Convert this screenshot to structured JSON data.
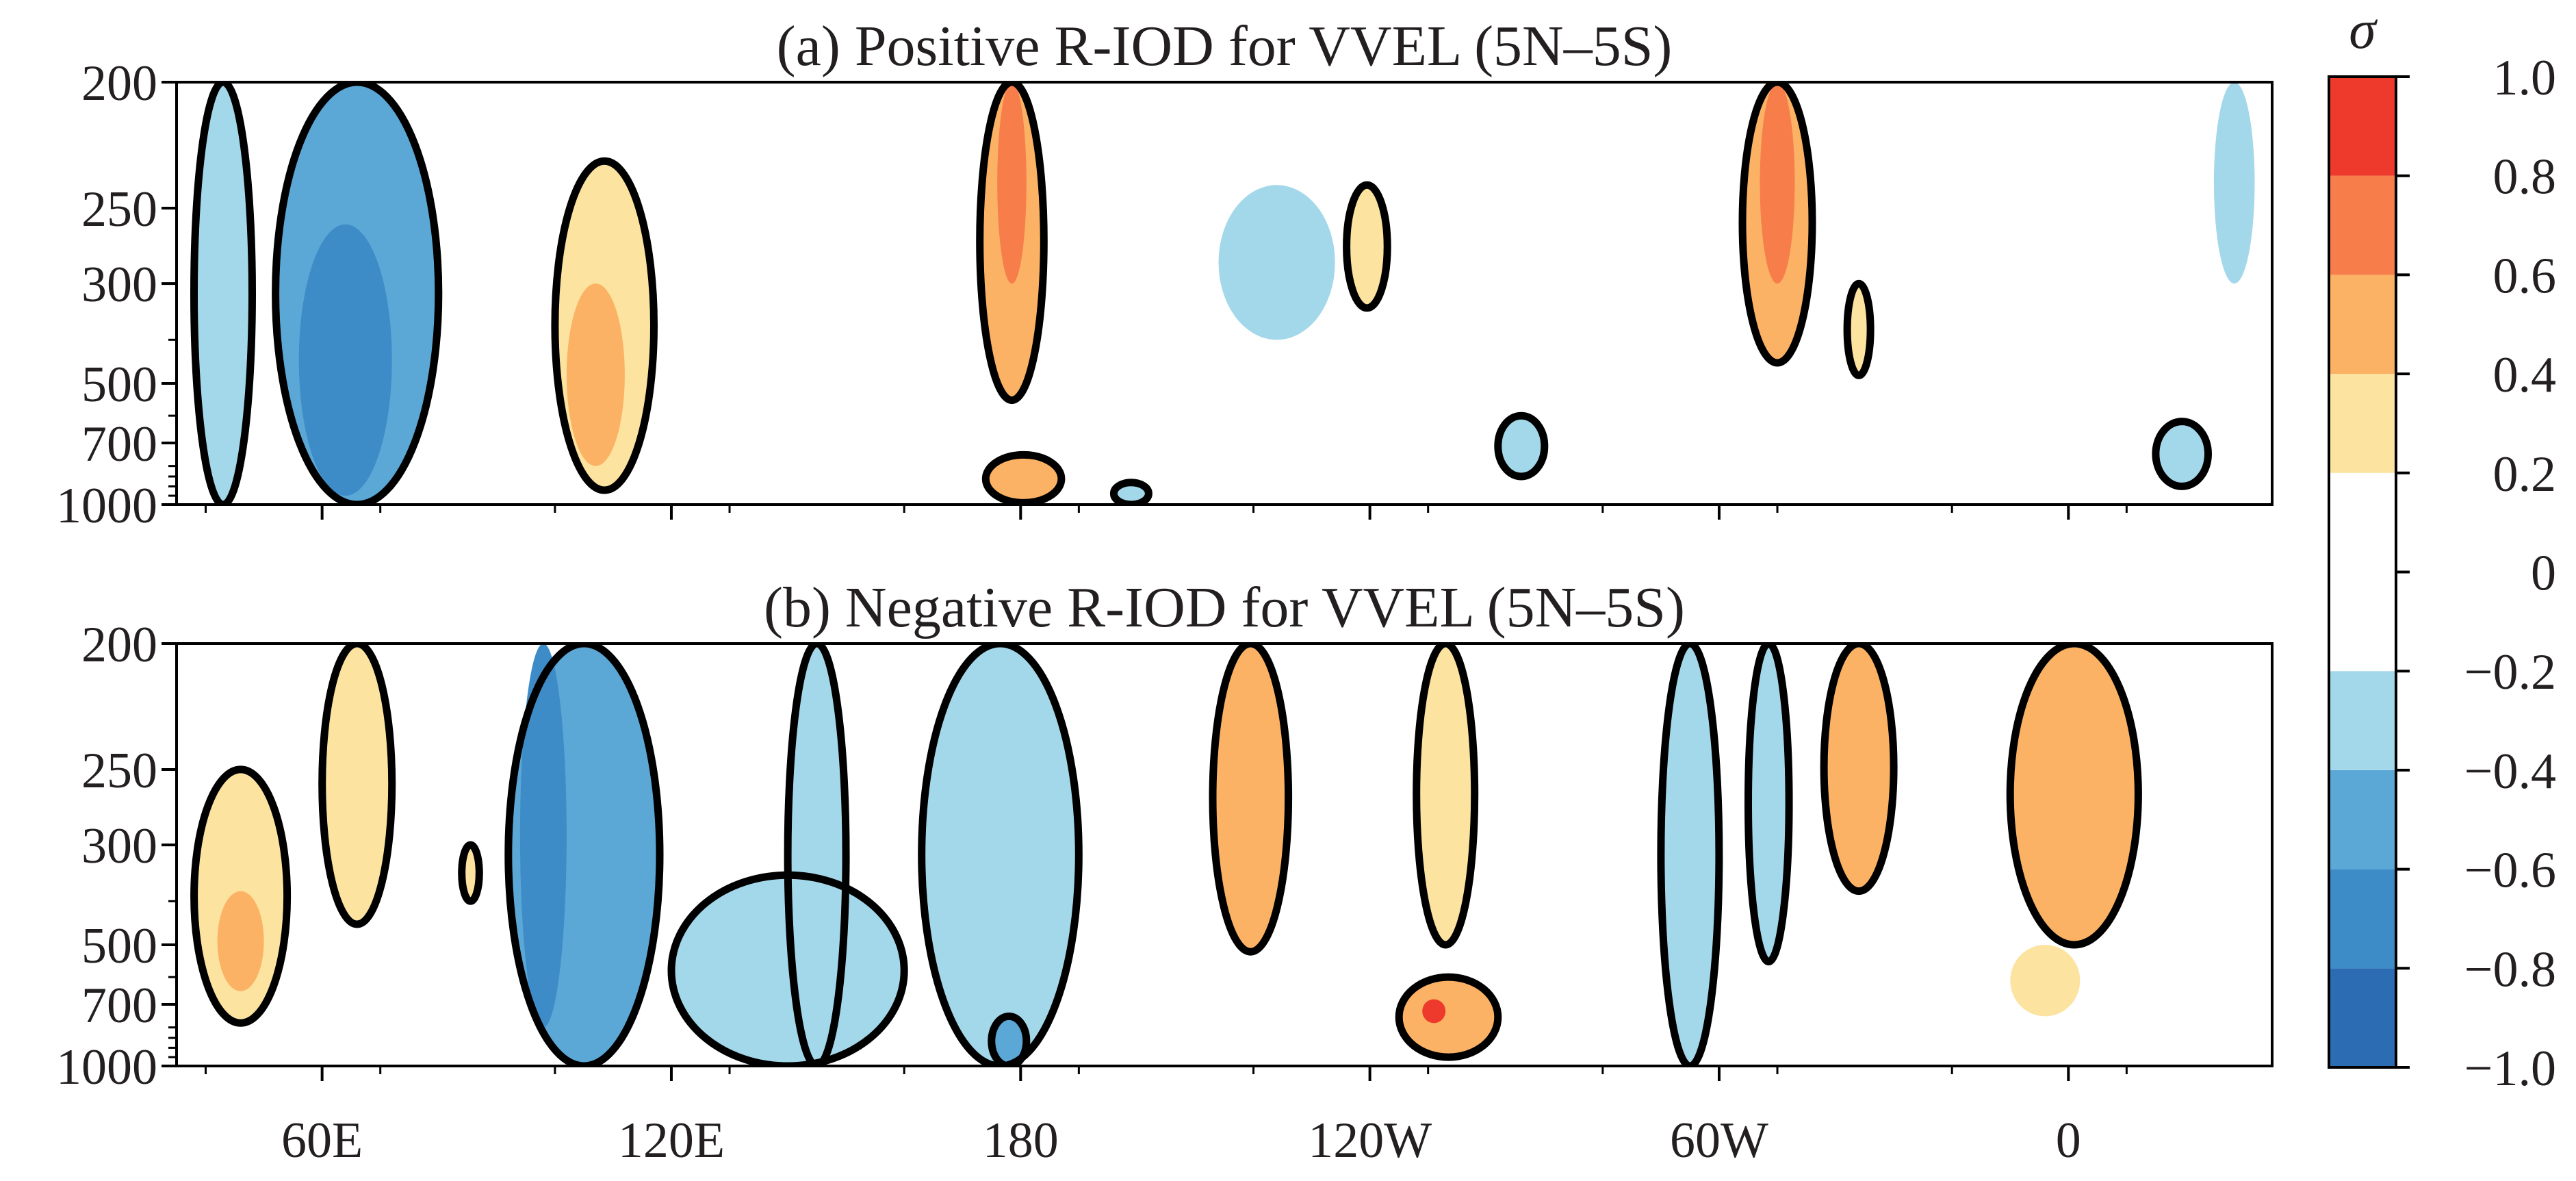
{
  "chart_data": {
    "type": "heatmap",
    "colorbar": {
      "symbol": "σ",
      "levels": [
        -1.0,
        -0.8,
        -0.6,
        -0.4,
        -0.2,
        0.2,
        0.4,
        0.6,
        0.8,
        1.0
      ],
      "tick_values": [
        1.0,
        0.8,
        0.6,
        0.4,
        0.2,
        0,
        -0.2,
        -0.4,
        -0.6,
        -0.8,
        -1.0
      ],
      "tick_labels": [
        "1.0",
        "0.8",
        "0.6",
        "0.4",
        "0.2",
        "0",
        "−0.2",
        "−0.4",
        "−0.6",
        "−0.8",
        "−1.0"
      ],
      "bins": [
        {
          "from": -1.0,
          "to": -0.8,
          "color": "#2b6cb3"
        },
        {
          "from": -0.8,
          "to": -0.6,
          "color": "#3d8cc8"
        },
        {
          "from": -0.6,
          "to": -0.4,
          "color": "#5ba7d6"
        },
        {
          "from": -0.4,
          "to": -0.2,
          "color": "#a3d8ea"
        },
        {
          "from": -0.2,
          "to": 0.2,
          "color": "#ffffff"
        },
        {
          "from": 0.2,
          "to": 0.4,
          "color": "#fde3a0"
        },
        {
          "from": 0.4,
          "to": 0.6,
          "color": "#fbb264"
        },
        {
          "from": 0.6,
          "to": 0.8,
          "color": "#f77d4b"
        },
        {
          "from": 0.8,
          "to": 1.0,
          "color": "#ee3a2c"
        }
      ]
    },
    "x_axis": {
      "range_deg_east": [
        35,
        395
      ],
      "ticks_deg_east": [
        60,
        120,
        180,
        240,
        300,
        360
      ],
      "tick_labels": [
        "60E",
        "120E",
        "180",
        "120W",
        "60W",
        "0"
      ]
    },
    "y_axis": {
      "levels_hpa": [
        200,
        250,
        300,
        500,
        700,
        1000
      ],
      "tick_labels": [
        "200",
        "250",
        "300",
        "500",
        "700",
        "1000"
      ],
      "minor_ticks_hpa": [
        200,
        250,
        300,
        400,
        500,
        600,
        700,
        800,
        850,
        900,
        950,
        1000
      ]
    },
    "panels": [
      {
        "title": "(a) Positive R-IOD for VVEL (5N–5S)",
        "features": [
          {
            "lon": [
              38,
              48
            ],
            "p": [
              200,
              1000
            ],
            "value": -0.3,
            "contour": true
          },
          {
            "lon": [
              52,
              80
            ],
            "p": [
              200,
              1000
            ],
            "value": -0.5,
            "contour": true
          },
          {
            "lon": [
              56,
              72
            ],
            "p": [
              260,
              950
            ],
            "value": -0.7,
            "contour": false
          },
          {
            "lon": [
              100,
              117
            ],
            "p": [
              230,
              920
            ],
            "value": 0.35,
            "contour": true
          },
          {
            "lon": [
              102,
              112
            ],
            "p": [
              300,
              800
            ],
            "value": 0.45,
            "contour": false
          },
          {
            "lon": [
              173,
              184
            ],
            "p": [
              200,
              550
            ],
            "value": 0.45,
            "contour": true
          },
          {
            "lon": [
              176,
              181
            ],
            "p": [
              200,
              300
            ],
            "value": 0.65,
            "contour": false
          },
          {
            "lon": [
              174,
              187
            ],
            "p": [
              750,
              990
            ],
            "value": 0.5,
            "contour": true
          },
          {
            "lon": [
              196,
              202
            ],
            "p": [
              880,
              1000
            ],
            "value": -0.3,
            "contour": true
          },
          {
            "lon": [
              236,
              243
            ],
            "p": [
              240,
              340
            ],
            "value": 0.3,
            "contour": true
          },
          {
            "lon": [
              214,
              234
            ],
            "p": [
              240,
              400
            ],
            "value": -0.25,
            "contour": false
          },
          {
            "lon": [
              262,
              270
            ],
            "p": [
              600,
              850
            ],
            "value": -0.3,
            "contour": true
          },
          {
            "lon": [
              304,
              316
            ],
            "p": [
              200,
              450
            ],
            "value": 0.45,
            "contour": true
          },
          {
            "lon": [
              307,
              313
            ],
            "p": [
              200,
              300
            ],
            "value": 0.7,
            "contour": false
          },
          {
            "lon": [
              322,
              326
            ],
            "p": [
              300,
              480
            ],
            "value": 0.3,
            "contour": true
          },
          {
            "lon": [
              375,
              384
            ],
            "p": [
              620,
              900
            ],
            "value": -0.3,
            "contour": true
          },
          {
            "lon": [
              385,
              392
            ],
            "p": [
              200,
              300
            ],
            "value": -0.3,
            "contour": false
          }
        ]
      },
      {
        "title": "(b) Negative R-IOD for VVEL (5N–5S)",
        "features": [
          {
            "lon": [
              38,
              54
            ],
            "p": [
              250,
              780
            ],
            "value": 0.35,
            "contour": true
          },
          {
            "lon": [
              42,
              50
            ],
            "p": [
              380,
              650
            ],
            "value": 0.5,
            "contour": false
          },
          {
            "lon": [
              60,
              72
            ],
            "p": [
              200,
              450
            ],
            "value": 0.3,
            "contour": true
          },
          {
            "lon": [
              84,
              87
            ],
            "p": [
              300,
              400
            ],
            "value": 0.3,
            "contour": true
          },
          {
            "lon": [
              92,
              118
            ],
            "p": [
              200,
              1000
            ],
            "value": -0.5,
            "contour": true
          },
          {
            "lon": [
              94,
              102
            ],
            "p": [
              200,
              800
            ],
            "value": -0.7,
            "contour": false
          },
          {
            "lon": [
              120,
              160
            ],
            "p": [
              350,
              1000
            ],
            "value": -0.3,
            "contour": true
          },
          {
            "lon": [
              140,
              150
            ],
            "p": [
              200,
              1000
            ],
            "value": -0.4,
            "contour": true
          },
          {
            "lon": [
              163,
              190
            ],
            "p": [
              200,
              1000
            ],
            "value": -0.3,
            "contour": true
          },
          {
            "lon": [
              175,
              181
            ],
            "p": [
              750,
              1000
            ],
            "value": -0.45,
            "contour": true
          },
          {
            "lon": [
              213,
              226
            ],
            "p": [
              200,
              520
            ],
            "value": 0.4,
            "contour": true
          },
          {
            "lon": [
              248,
              258
            ],
            "p": [
              200,
              500
            ],
            "value": 0.35,
            "contour": true
          },
          {
            "lon": [
              245,
              262
            ],
            "p": [
              600,
              950
            ],
            "value": 0.5,
            "contour": true
          },
          {
            "lon": [
              249,
              253
            ],
            "p": [
              680,
              780
            ],
            "value": 0.8,
            "contour": false
          },
          {
            "lon": [
              290,
              300
            ],
            "p": [
              200,
              1000
            ],
            "value": -0.35,
            "contour": true
          },
          {
            "lon": [
              305,
              312
            ],
            "p": [
              200,
              550
            ],
            "value": -0.3,
            "contour": true
          },
          {
            "lon": [
              318,
              330
            ],
            "p": [
              200,
              380
            ],
            "value": 0.45,
            "contour": true
          },
          {
            "lon": [
              350,
              372
            ],
            "p": [
              200,
              500
            ],
            "value": 0.45,
            "contour": true
          },
          {
            "lon": [
              350,
              362
            ],
            "p": [
              500,
              750
            ],
            "value": 0.3,
            "contour": false
          }
        ]
      }
    ]
  }
}
